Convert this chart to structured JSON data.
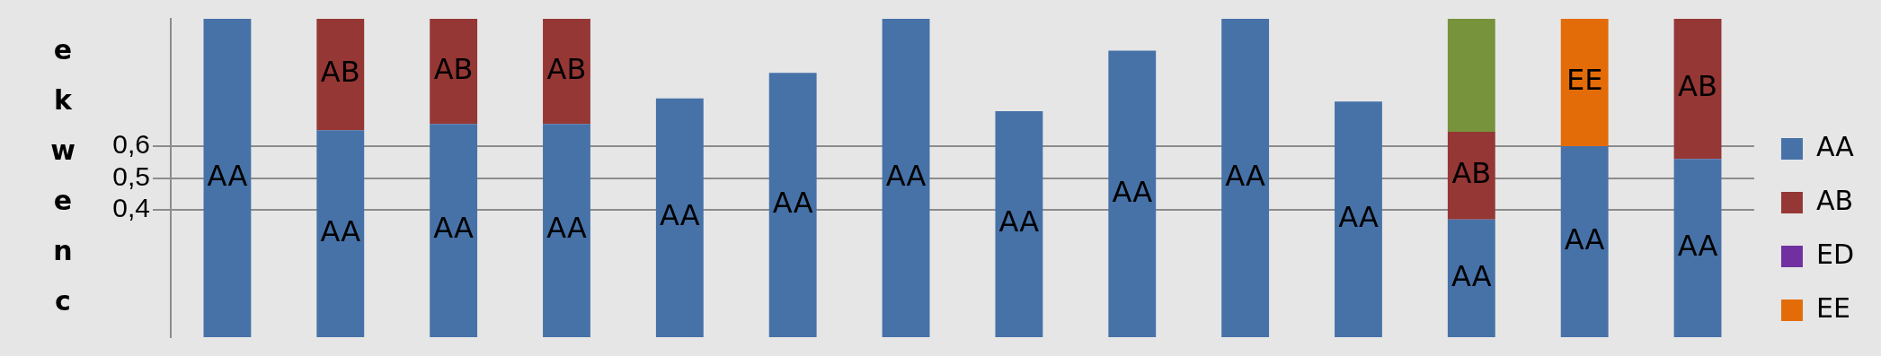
{
  "chart_data": {
    "type": "bar",
    "stacked": true,
    "ylabel": "ekwenc",
    "categories": [
      null,
      null,
      null,
      null,
      null,
      null,
      null,
      null,
      null,
      null,
      null,
      null,
      null,
      null
    ],
    "series": [
      {
        "name": "AA",
        "color": "#4672a8",
        "values": [
          1.0,
          0.65,
          0.67,
          0.67,
          0.75,
          0.83,
          1.0,
          0.71,
          0.9,
          1.0,
          0.74,
          0.37,
          0.6,
          0.56
        ]
      },
      {
        "name": "AB",
        "color": "#953735",
        "values": [
          null,
          0.35,
          0.33,
          0.33,
          null,
          null,
          null,
          null,
          null,
          null,
          null,
          0.275,
          null,
          0.44
        ]
      },
      {
        "color": "#77933c",
        "values": [
          null,
          null,
          null,
          null,
          null,
          null,
          null,
          null,
          null,
          null,
          null,
          0.355,
          null,
          null
        ]
      },
      {
        "name": "ED",
        "color": "#7030a0",
        "values": [
          null,
          null,
          null,
          null,
          null,
          null,
          null,
          null,
          null,
          null,
          null,
          null,
          null,
          null
        ]
      },
      {
        "name": "EE",
        "color": "#e36c09",
        "values": [
          null,
          null,
          null,
          null,
          null,
          null,
          null,
          null,
          null,
          null,
          null,
          null,
          0.4,
          null
        ]
      }
    ],
    "ylim": [
      0,
      1
    ],
    "yticks": [
      {
        "value": 0.4,
        "label": "0,4"
      },
      {
        "value": 0.5,
        "label": "0,5"
      },
      {
        "value": 0.6,
        "label": "0,6"
      }
    ],
    "grid": "y",
    "legend": "right",
    "tick_labels": "y"
  }
}
